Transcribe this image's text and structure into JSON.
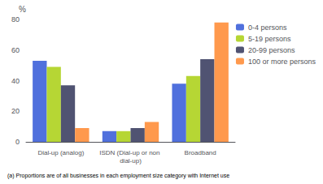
{
  "chart_data": {
    "type": "bar",
    "categories": [
      "Dial-up (analog)",
      "ISDN (Dial-up or non dial-up)",
      "Broadband"
    ],
    "series": [
      {
        "name": "0-4 persons",
        "values": [
          53,
          7,
          38
        ]
      },
      {
        "name": "5-19 persons",
        "values": [
          49,
          7,
          43
        ]
      },
      {
        "name": "20-99 persons",
        "values": [
          37,
          9,
          54
        ]
      },
      {
        "name": "100 or more persons",
        "values": [
          9,
          13,
          78
        ]
      }
    ],
    "ylabel": "%",
    "annotations": [
      "(a) Proportions are of all businesses in each employment size category with Internet use"
    ],
    "ylim": [
      0,
      80
    ],
    "yticks": [
      0,
      20,
      40,
      60,
      80
    ],
    "grid": false,
    "legend": "upper right"
  }
}
